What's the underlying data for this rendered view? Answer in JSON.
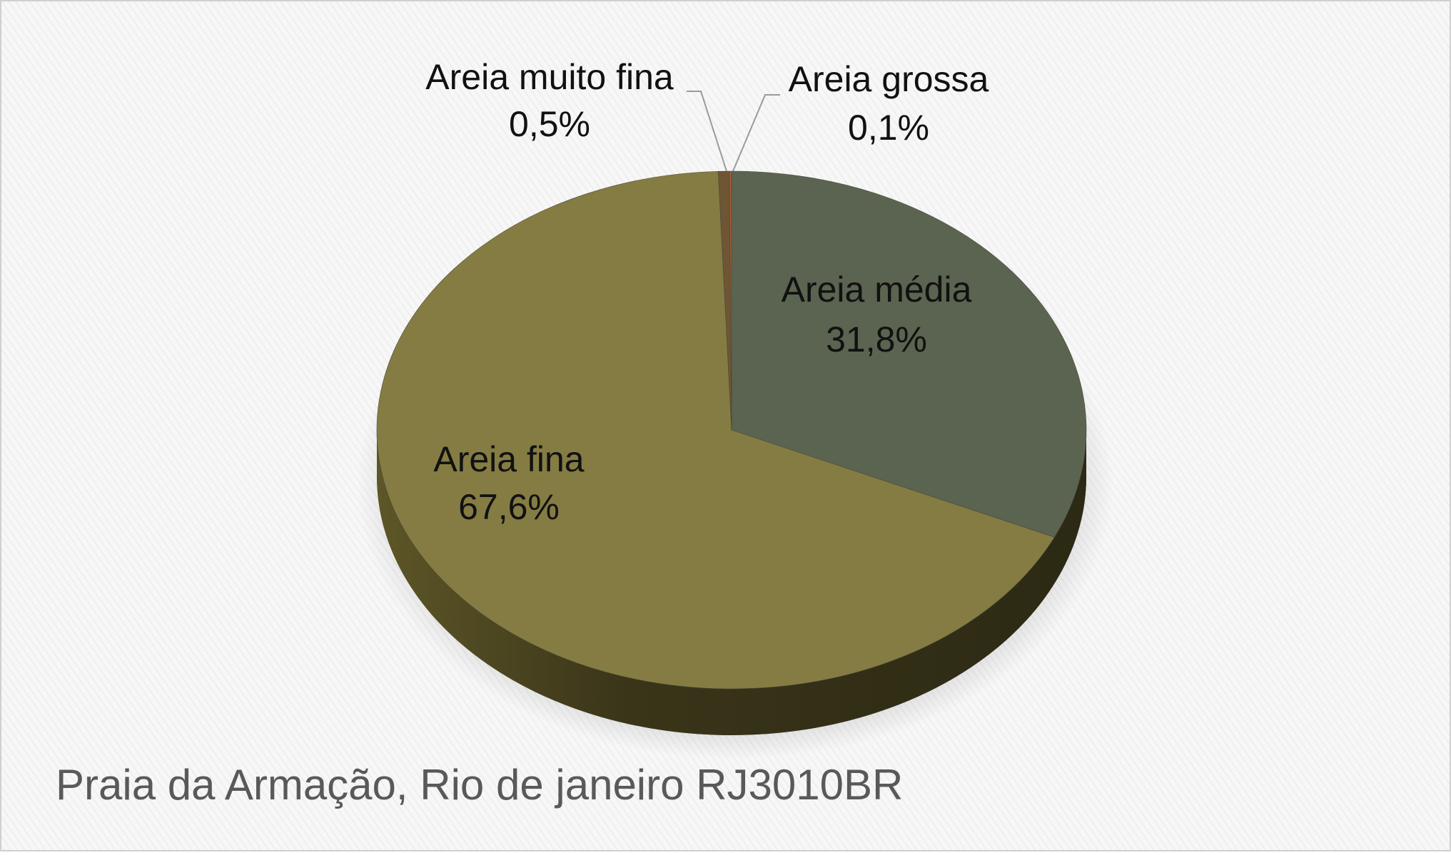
{
  "chart_data": {
    "type": "pie",
    "title": "Praia da Armação, Rio de janeiro RJ3010BR",
    "categories": [
      "Areia média",
      "Areia fina",
      "Areia muito fina",
      "Areia grossa"
    ],
    "values": [
      31.8,
      67.6,
      0.5,
      0.1
    ],
    "value_labels": [
      "31,8%",
      "67,6%",
      "0,5%",
      "0,1%"
    ],
    "colors": [
      "#5b6450",
      "#857c43",
      "#6e5634",
      "#a45a32"
    ]
  }
}
